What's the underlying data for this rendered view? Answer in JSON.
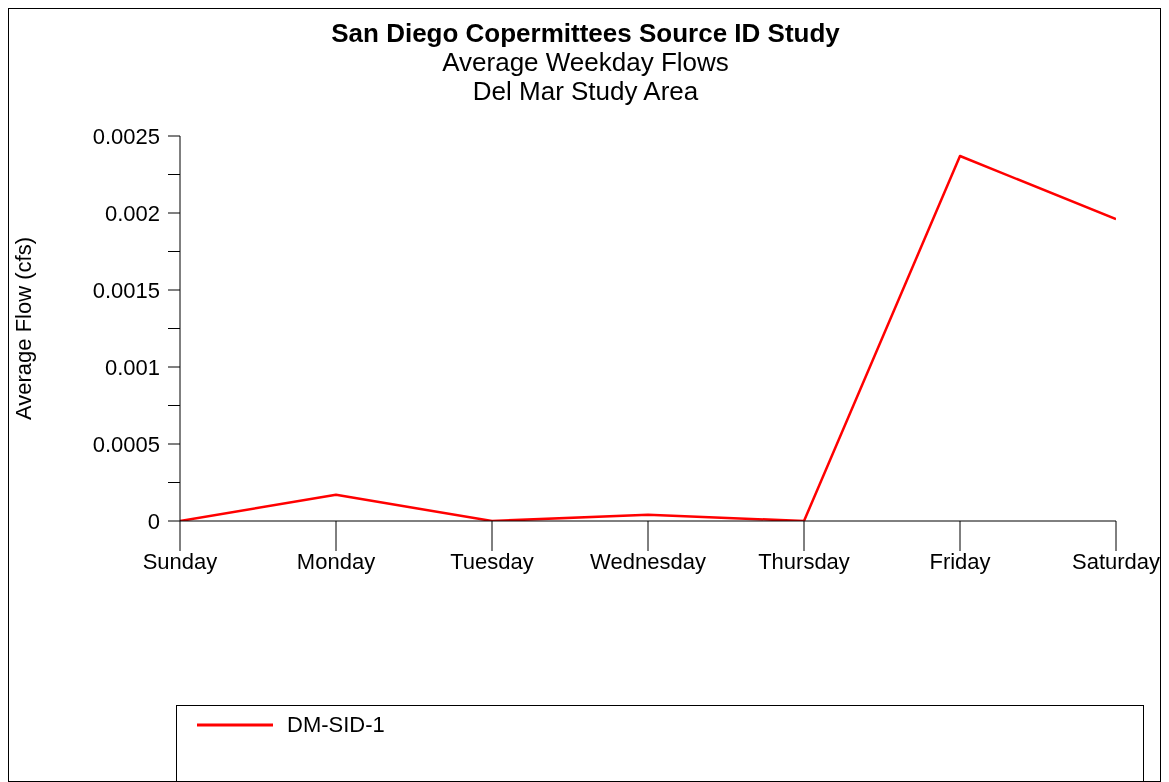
{
  "chart_data": {
    "type": "line",
    "title": "San Diego Copermittees Source ID Study",
    "subtitle": "Average Weekday Flows\nDel Mar Study Area",
    "ylabel": "Average Flow (cfs)",
    "categories": [
      "Sunday",
      "Monday",
      "Tuesday",
      "Wednesday",
      "Thursday",
      "Friday",
      "Saturday"
    ],
    "series": [
      {
        "name": "DM-SID-1",
        "color": "#ff0000",
        "values": [
          0,
          0.00017,
          0,
          4e-05,
          0,
          0.00237,
          0.00196
        ]
      }
    ],
    "ylim": [
      0,
      0.0025
    ],
    "yticks": [
      0,
      {
        "value": 0.00025,
        "label": null
      },
      {
        "value": 0.0005,
        "label": "0.0005"
      },
      {
        "value": 0.00075,
        "label": null
      },
      {
        "value": 0.001,
        "label": "0.001"
      },
      {
        "value": 0.00125,
        "label": null
      },
      {
        "value": 0.0015,
        "label": "0.0015"
      },
      {
        "value": 0.00175,
        "label": null
      },
      {
        "value": 0.002,
        "label": "0.002"
      },
      {
        "value": 0.00225,
        "label": null
      },
      {
        "value": 0.0025,
        "label": "0.0025"
      }
    ],
    "grid": false,
    "legend": "bottom",
    "marker": "none",
    "line_style": "solid"
  }
}
